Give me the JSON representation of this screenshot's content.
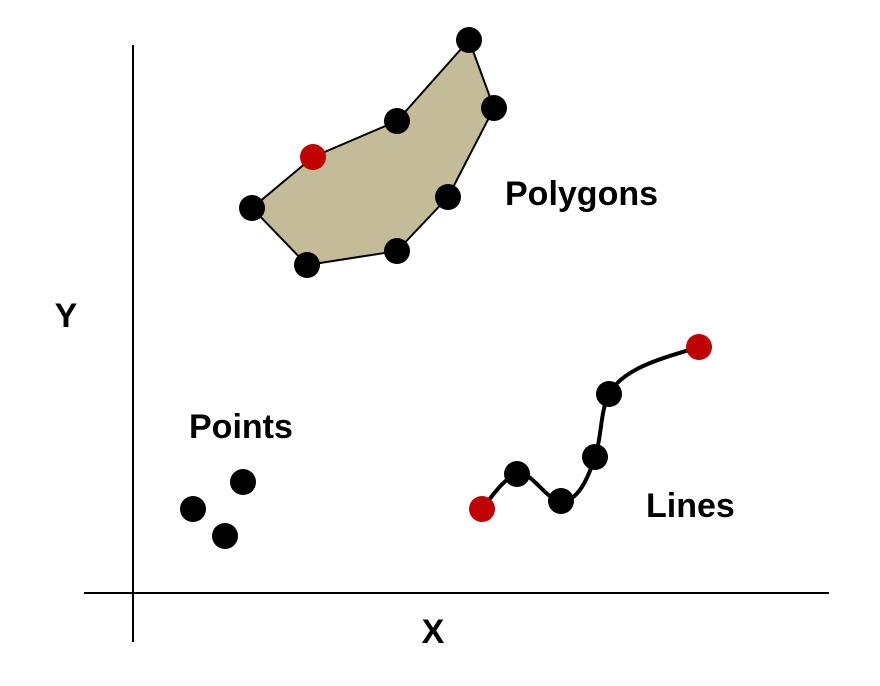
{
  "labels": {
    "x_axis": "X",
    "y_axis": "Y",
    "polygons": "Polygons",
    "points": "Points",
    "lines": "Lines"
  },
  "colors": {
    "background": "#ffffff",
    "axis": "#000000",
    "vertex": "#000000",
    "endpoint": "#c00000",
    "polygon_fill": "#c4bc98",
    "line": "#000000"
  }
}
